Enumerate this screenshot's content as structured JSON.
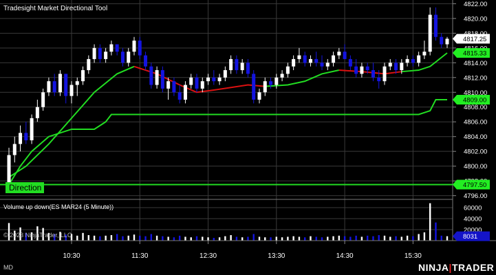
{
  "window": {
    "title": "Tradesight Market Directional Tool",
    "status_left": "MD",
    "brand": "NINJATRADER",
    "brand_prefix": "NINJA",
    "brand_suffix": "TRADER",
    "copyright": "© 2023 NinjaTrader, LLC",
    "direction_label": "Direction",
    "volume_title": "Volume up down(ES MAR24 (5 Minute))"
  },
  "colors": {
    "background": "#000000",
    "grid": "#3a3a3a",
    "up_candle": "#ffffff",
    "down_candle": "#1414e0",
    "line_green": "#22dd22",
    "line_red": "#dd1111",
    "price_badge": "#ffffff",
    "green_badge": "#22ee22",
    "volume_badge": "#1414c8",
    "brand_accent": "#ee2222"
  },
  "chart_data": [
    {
      "type": "candlestick",
      "title": "Tradesight Market Directional Tool",
      "y_ticks": [
        4796.0,
        4798.0,
        4800.0,
        4802.0,
        4804.0,
        4806.0,
        4808.0,
        4810.0,
        4812.0,
        4814.0,
        4816.0,
        4818.0,
        4820.0,
        4822.0
      ],
      "y_tick_labels": [
        "4796.00",
        "4798.00",
        "4800.00",
        "4802.00",
        "4804.00",
        "4806.00",
        "4808.00",
        "4810.00",
        "4812.00",
        "4814.00",
        "4816.00",
        "4818.00",
        "4820.00",
        "4822.00"
      ],
      "ylim": [
        4795.5,
        4822.5
      ],
      "x_ticks": [
        "10:30",
        "11:30",
        "12:30",
        "13:30",
        "14:30",
        "15:30"
      ],
      "x_tick_times": [
        "10:30",
        "11:30",
        "12:30",
        "13:30",
        "14:30",
        "15:30"
      ],
      "time_range": [
        "09:35",
        "16:00"
      ],
      "candles": [
        [
          "09:35",
          4797.0,
          4802.5,
          4796.5,
          4801.5
        ],
        [
          "09:40",
          4801.5,
          4804.0,
          4800.5,
          4803.0
        ],
        [
          "09:45",
          4803.0,
          4805.5,
          4802.0,
          4804.5
        ],
        [
          "09:50",
          4804.5,
          4806.0,
          4803.0,
          4803.5
        ],
        [
          "09:55",
          4803.5,
          4807.0,
          4803.0,
          4806.5
        ],
        [
          "10:00",
          4806.5,
          4809.0,
          4806.0,
          4808.0
        ],
        [
          "10:05",
          4808.0,
          4810.5,
          4807.5,
          4810.0
        ],
        [
          "10:10",
          4810.0,
          4812.0,
          4809.5,
          4811.5
        ],
        [
          "10:15",
          4811.5,
          4812.5,
          4809.5,
          4810.0
        ],
        [
          "10:20",
          4810.0,
          4813.0,
          4809.5,
          4812.5
        ],
        [
          "10:25",
          4812.5,
          4812.5,
          4808.5,
          4809.5
        ],
        [
          "10:30",
          4809.5,
          4811.5,
          4808.5,
          4811.0
        ],
        [
          "10:35",
          4811.0,
          4812.0,
          4809.5,
          4811.5
        ],
        [
          "10:40",
          4811.5,
          4813.5,
          4811.0,
          4813.0
        ],
        [
          "10:45",
          4813.0,
          4815.0,
          4812.5,
          4814.5
        ],
        [
          "10:50",
          4814.5,
          4816.5,
          4814.0,
          4816.0
        ],
        [
          "10:55",
          4816.0,
          4816.5,
          4814.0,
          4814.5
        ],
        [
          "11:00",
          4814.5,
          4816.0,
          4814.0,
          4815.5
        ],
        [
          "11:05",
          4815.5,
          4817.0,
          4815.0,
          4816.5
        ],
        [
          "11:10",
          4816.5,
          4816.5,
          4815.0,
          4815.5
        ],
        [
          "11:15",
          4815.5,
          4816.0,
          4813.5,
          4814.0
        ],
        [
          "11:20",
          4814.0,
          4816.0,
          4813.5,
          4815.5
        ],
        [
          "11:25",
          4815.5,
          4817.5,
          4815.0,
          4817.0
        ],
        [
          "11:30",
          4817.0,
          4817.5,
          4814.5,
          4815.0
        ],
        [
          "11:35",
          4815.0,
          4815.5,
          4813.0,
          4813.5
        ],
        [
          "11:40",
          4813.5,
          4814.0,
          4810.5,
          4811.0
        ],
        [
          "11:45",
          4811.0,
          4813.5,
          4810.5,
          4813.0
        ],
        [
          "11:50",
          4813.0,
          4813.5,
          4810.0,
          4810.5
        ],
        [
          "11:55",
          4810.5,
          4812.0,
          4809.0,
          4811.5
        ],
        [
          "12:00",
          4811.5,
          4812.0,
          4809.5,
          4810.0
        ],
        [
          "12:05",
          4810.0,
          4811.0,
          4808.5,
          4809.0
        ],
        [
          "12:10",
          4809.0,
          4811.5,
          4808.5,
          4811.0
        ],
        [
          "12:15",
          4811.0,
          4812.5,
          4810.5,
          4812.0
        ],
        [
          "12:20",
          4812.0,
          4812.5,
          4810.0,
          4810.5
        ],
        [
          "12:25",
          4810.5,
          4812.0,
          4810.0,
          4811.5
        ],
        [
          "12:30",
          4811.5,
          4812.5,
          4811.0,
          4812.0
        ],
        [
          "12:35",
          4812.0,
          4813.0,
          4811.0,
          4811.5
        ],
        [
          "12:40",
          4811.5,
          4812.5,
          4811.0,
          4812.0
        ],
        [
          "12:45",
          4812.0,
          4813.5,
          4811.5,
          4813.0
        ],
        [
          "12:50",
          4813.0,
          4815.0,
          4812.5,
          4814.5
        ],
        [
          "12:55",
          4814.5,
          4815.0,
          4812.5,
          4813.0
        ],
        [
          "13:00",
          4813.0,
          4814.5,
          4812.5,
          4814.0
        ],
        [
          "13:05",
          4814.0,
          4814.5,
          4812.0,
          4812.5
        ],
        [
          "13:10",
          4812.5,
          4813.0,
          4808.5,
          4809.0
        ],
        [
          "13:15",
          4809.0,
          4810.5,
          4808.5,
          4810.0
        ],
        [
          "13:20",
          4810.0,
          4812.0,
          4809.5,
          4811.5
        ],
        [
          "13:25",
          4811.5,
          4812.0,
          4810.5,
          4811.0
        ],
        [
          "13:30",
          4811.0,
          4812.5,
          4810.5,
          4812.0
        ],
        [
          "13:35",
          4812.0,
          4813.0,
          4811.5,
          4812.5
        ],
        [
          "13:40",
          4812.5,
          4814.0,
          4812.0,
          4813.5
        ],
        [
          "13:45",
          4813.5,
          4815.0,
          4813.0,
          4814.5
        ],
        [
          "13:50",
          4814.5,
          4816.0,
          4814.0,
          4815.0
        ],
        [
          "13:55",
          4815.0,
          4815.5,
          4813.5,
          4814.0
        ],
        [
          "14:00",
          4814.0,
          4815.0,
          4813.5,
          4814.5
        ],
        [
          "14:05",
          4814.5,
          4815.5,
          4813.5,
          4814.0
        ],
        [
          "14:10",
          4814.0,
          4815.0,
          4813.0,
          4813.5
        ],
        [
          "14:15",
          4813.5,
          4814.5,
          4813.0,
          4814.0
        ],
        [
          "14:20",
          4814.0,
          4815.5,
          4813.5,
          4815.0
        ],
        [
          "14:25",
          4815.0,
          4816.0,
          4814.5,
          4815.5
        ],
        [
          "14:30",
          4815.5,
          4816.5,
          4814.5,
          4814.5
        ],
        [
          "14:35",
          4814.5,
          4815.0,
          4813.0,
          4813.5
        ],
        [
          "14:40",
          4813.5,
          4814.5,
          4812.0,
          4812.5
        ],
        [
          "14:45",
          4812.5,
          4814.0,
          4812.0,
          4813.5
        ],
        [
          "14:50",
          4813.5,
          4814.0,
          4812.5,
          4813.0
        ],
        [
          "14:55",
          4813.0,
          4814.0,
          4811.5,
          4812.0
        ],
        [
          "15:00",
          4812.0,
          4813.0,
          4810.5,
          4811.5
        ],
        [
          "15:05",
          4811.5,
          4814.0,
          4811.0,
          4813.5
        ],
        [
          "15:10",
          4813.5,
          4814.5,
          4813.0,
          4814.0
        ],
        [
          "15:15",
          4814.0,
          4814.5,
          4812.5,
          4813.0
        ],
        [
          "15:20",
          4813.0,
          4814.5,
          4812.5,
          4814.0
        ],
        [
          "15:25",
          4814.0,
          4815.0,
          4813.5,
          4814.5
        ],
        [
          "15:30",
          4814.5,
          4815.0,
          4813.5,
          4814.0
        ],
        [
          "15:35",
          4814.0,
          4815.5,
          4813.5,
          4815.0
        ],
        [
          "15:40",
          4815.0,
          4817.0,
          4814.5,
          4815.5
        ],
        [
          "15:45",
          4815.5,
          4821.5,
          4815.0,
          4820.5
        ],
        [
          "15:50",
          4820.5,
          4821.5,
          4817.0,
          4817.5
        ],
        [
          "15:55",
          4817.5,
          4818.0,
          4816.0,
          4816.5
        ],
        [
          "16:00",
          4816.5,
          4817.5,
          4816.0,
          4817.25
        ]
      ],
      "moving_average": {
        "segments": [
          {
            "color": "green",
            "points": [
              [
                "09:35",
                4798.5
              ],
              [
                "09:50",
                4800.0
              ],
              [
                "10:10",
                4803.0
              ],
              [
                "10:30",
                4806.5
              ],
              [
                "10:50",
                4810.0
              ],
              [
                "11:10",
                4812.5
              ],
              [
                "11:25",
                4813.5
              ]
            ]
          },
          {
            "color": "red",
            "points": [
              [
                "11:25",
                4813.5
              ],
              [
                "11:45",
                4812.5
              ],
              [
                "12:05",
                4811.0
              ],
              [
                "12:20",
                4810.0
              ],
              [
                "12:35",
                4810.3
              ],
              [
                "13:05",
                4811.0
              ],
              [
                "13:20",
                4810.8
              ]
            ]
          },
          {
            "color": "green",
            "points": [
              [
                "13:20",
                4810.8
              ],
              [
                "13:40",
                4811.0
              ],
              [
                "13:55",
                4811.5
              ],
              [
                "14:10",
                4812.5
              ],
              [
                "14:25",
                4813.0
              ]
            ]
          },
          {
            "color": "red",
            "points": [
              [
                "14:25",
                4813.0
              ],
              [
                "14:45",
                4812.8
              ],
              [
                "15:05",
                4812.5
              ],
              [
                "15:20",
                4812.8
              ]
            ]
          },
          {
            "color": "green",
            "points": [
              [
                "15:20",
                4812.8
              ],
              [
                "15:35",
                4813.0
              ],
              [
                "15:45",
                4813.5
              ],
              [
                "16:00",
                4815.33
              ]
            ]
          }
        ]
      },
      "stop_line": [
        [
          "09:35",
          4797.5
        ],
        [
          "09:45",
          4800.0
        ],
        [
          "09:55",
          4802.0
        ],
        [
          "10:10",
          4804.0
        ],
        [
          "10:30",
          4805.0
        ],
        [
          "10:50",
          4805.0
        ],
        [
          "11:00",
          4806.0
        ],
        [
          "11:05",
          4807.0
        ],
        [
          "11:25",
          4807.0
        ],
        [
          "11:40",
          4807.0
        ],
        [
          "15:35",
          4807.0
        ],
        [
          "15:45",
          4807.5
        ],
        [
          "15:50",
          4809.0
        ],
        [
          "16:00",
          4809.0
        ]
      ],
      "direction_line": 4797.5,
      "price_labels": [
        {
          "text": "4817.25",
          "value": 4817.25,
          "style": "price"
        },
        {
          "text": "4815.33",
          "value": 4815.33,
          "style": "green"
        },
        {
          "text": "4809.00",
          "value": 4809.0,
          "style": "green"
        },
        {
          "text": "4797.50",
          "value": 4797.5,
          "style": "green"
        }
      ]
    },
    {
      "type": "bar",
      "title": "Volume up down(ES MAR24 (5 Minute))",
      "y_ticks": [
        20000,
        40000,
        60000
      ],
      "y_tick_labels": [
        "20000",
        "40000",
        "60000"
      ],
      "ylim": [
        0,
        70000
      ],
      "last_value_label": "8031",
      "last_value": 8031,
      "volumes": [
        32000,
        18000,
        24000,
        14000,
        15000,
        26000,
        23000,
        14000,
        12000,
        16000,
        11000,
        12000,
        9000,
        14000,
        10000,
        9000,
        8000,
        9000,
        10000,
        12000,
        8000,
        9000,
        11000,
        9000,
        8000,
        12000,
        9000,
        8000,
        7000,
        6000,
        9000,
        7000,
        6000,
        8000,
        7000,
        6000,
        5000,
        6000,
        8000,
        10000,
        7000,
        6000,
        7000,
        12000,
        7000,
        6000,
        6000,
        7000,
        6000,
        7000,
        8000,
        7000,
        6000,
        8000,
        7000,
        6000,
        7000,
        8000,
        9000,
        8000,
        7000,
        9000,
        7000,
        9000,
        8000,
        10000,
        9000,
        7000,
        8000,
        7000,
        9000,
        8000,
        12000,
        15000,
        68000,
        33000,
        9000,
        8031
      ]
    }
  ]
}
